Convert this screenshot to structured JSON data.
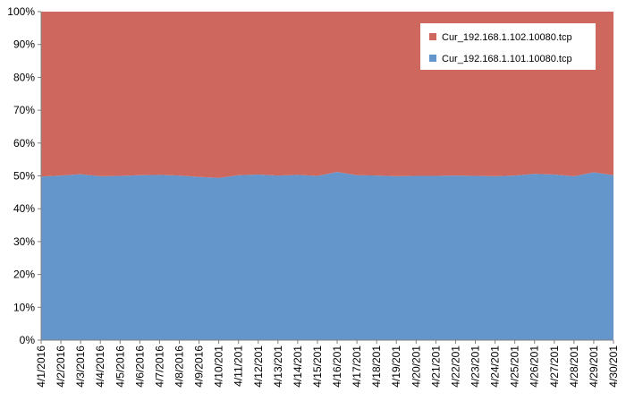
{
  "chart_data": {
    "type": "area",
    "stacked_percent": true,
    "title": "",
    "xlabel": "",
    "ylabel": "",
    "ylim": [
      0,
      100
    ],
    "y_ticks": [
      "0%",
      "10%",
      "20%",
      "30%",
      "40%",
      "50%",
      "60%",
      "70%",
      "80%",
      "90%",
      "100%"
    ],
    "grid": false,
    "legend_position": "top-right",
    "categories": [
      "4/1/2016",
      "4/2/2016",
      "4/3/2016",
      "4/4/2016",
      "4/5/2016",
      "4/6/2016",
      "4/7/2016",
      "4/8/2016",
      "4/9/2016",
      "4/10/201",
      "4/11/201",
      "4/12/201",
      "4/13/201",
      "4/14/201",
      "4/15/201",
      "4/16/201",
      "4/17/201",
      "4/18/201",
      "4/19/201",
      "4/20/201",
      "4/21/201",
      "4/22/201",
      "4/23/201",
      "4/24/201",
      "4/25/201",
      "4/26/201",
      "4/27/201",
      "4/28/201",
      "4/29/201",
      "4/30/201"
    ],
    "series": [
      {
        "name": "Cur_192.168.1.101.10080.tcp",
        "color": "#6495CB",
        "values": [
          49.8,
          50.1,
          50.5,
          49.9,
          50.0,
          50.2,
          50.3,
          50.1,
          49.7,
          49.4,
          50.2,
          50.4,
          50.1,
          50.3,
          50.0,
          51.2,
          50.2,
          50.1,
          49.9,
          50.0,
          50.0,
          50.1,
          50.0,
          49.9,
          50.1,
          50.6,
          50.4,
          49.9,
          51.1,
          50.2
        ]
      },
      {
        "name": "Cur_192.168.1.102.10080.tcp",
        "color": "#CE675E",
        "values": [
          50.2,
          49.9,
          49.5,
          50.1,
          50.0,
          49.8,
          49.7,
          49.9,
          50.3,
          50.6,
          49.8,
          49.6,
          49.9,
          49.7,
          50.0,
          48.8,
          49.8,
          49.9,
          50.1,
          50.0,
          50.0,
          49.9,
          50.0,
          50.1,
          49.9,
          49.4,
          49.6,
          50.1,
          48.9,
          49.8
        ]
      }
    ],
    "legend": [
      {
        "label": "Cur_192.168.1.102.10080.tcp",
        "color": "#CE675E"
      },
      {
        "label": "Cur_192.168.1.101.10080.tcp",
        "color": "#6495CB"
      }
    ]
  }
}
